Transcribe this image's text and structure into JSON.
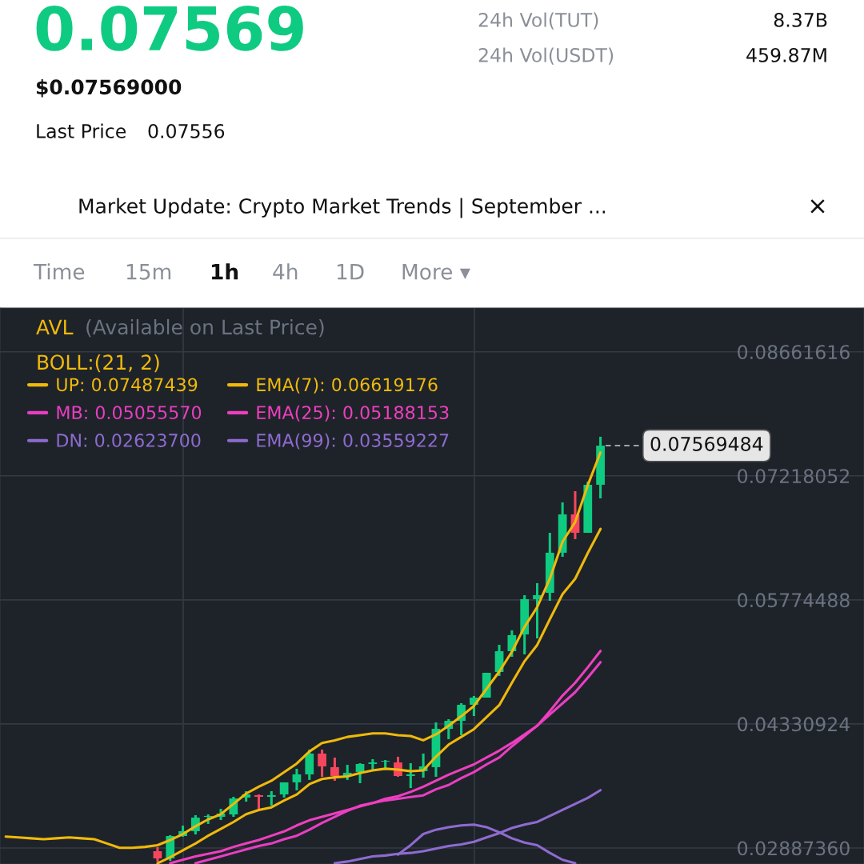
{
  "chart_data": {
    "type": "candlestick",
    "categories": [
      null,
      null,
      null,
      null,
      null,
      null,
      null,
      null,
      null,
      null,
      null,
      null,
      null,
      null,
      null,
      null,
      null,
      null,
      null,
      null,
      null,
      null,
      null,
      null,
      null,
      null,
      null,
      null,
      null,
      null,
      null,
      null,
      null,
      null,
      null,
      null,
      null,
      null,
      null,
      null,
      null,
      null,
      null,
      null,
      null,
      null,
      null,
      null
    ],
    "ohlc": [
      null,
      null,
      null,
      null,
      null,
      null,
      null,
      null,
      null,
      null,
      null,
      null,
      [
        0.0285,
        0.02897,
        0.02729,
        0.02766
      ],
      [
        0.02766,
        0.03036,
        0.02738,
        0.03027
      ],
      [
        0.03027,
        0.03148,
        0.03018,
        0.03083
      ],
      [
        0.03083,
        0.03269,
        0.03045,
        0.03241
      ],
      [
        0.0325,
        0.03278,
        0.03167,
        0.0326
      ],
      [
        0.0325,
        0.03343,
        0.03213,
        0.03288
      ],
      [
        0.03278,
        0.03483,
        0.0325,
        0.03464
      ],
      [
        0.03474,
        0.03548,
        0.03427,
        0.03511
      ],
      [
        0.03502,
        0.03511,
        0.03334,
        0.03483
      ],
      [
        0.03483,
        0.03548,
        0.03381,
        0.03502
      ],
      [
        0.03511,
        0.03651,
        0.03474,
        0.03651
      ],
      [
        0.03651,
        0.03809,
        0.03558,
        0.03744
      ],
      [
        0.03744,
        0.04032,
        0.03679,
        0.03986
      ],
      [
        0.03986,
        0.04032,
        0.03716,
        0.03837
      ],
      [
        0.03828,
        0.03939,
        0.03669,
        0.03725
      ],
      [
        0.03725,
        0.03855,
        0.03679,
        0.03762
      ],
      [
        0.03772,
        0.03874,
        0.03641,
        0.03865
      ],
      [
        0.03865,
        0.03921,
        0.038,
        0.03883
      ],
      [
        0.03893,
        0.03911,
        0.03818,
        0.03902
      ],
      [
        0.03883,
        0.03949,
        0.03716,
        0.03725
      ],
      [
        0.03725,
        0.03874,
        0.03585,
        0.03744
      ],
      [
        0.03781,
        0.03986,
        0.03706,
        0.03837
      ],
      [
        0.03828,
        0.04349,
        0.03716,
        0.04274
      ],
      [
        0.04274,
        0.04386,
        0.04153,
        0.04367
      ],
      [
        0.04367,
        0.04572,
        0.042,
        0.04554
      ],
      [
        0.04554,
        0.04656,
        0.04423,
        0.04637
      ],
      [
        0.04637,
        0.04926,
        0.04637,
        0.04926
      ],
      [
        0.04935,
        0.05252,
        0.04889,
        0.05177
      ],
      [
        0.05177,
        0.0542,
        0.05112,
        0.05364
      ],
      [
        0.05373,
        0.05829,
        0.0514,
        0.05783
      ],
      [
        0.05783,
        0.05969,
        0.05326,
        0.05829
      ],
      [
        0.05857,
        0.06555,
        0.05764,
        0.06323
      ],
      [
        0.06323,
        0.06909,
        0.06276,
        0.06769
      ],
      [
        0.06769,
        0.07039,
        0.06481,
        0.06555
      ],
      [
        0.06555,
        0.07151,
        0.06555,
        0.07114
      ],
      [
        0.07114,
        0.07673,
        0.06956,
        0.07569
      ]
    ],
    "colors": [
      null,
      null,
      null,
      null,
      null,
      null,
      null,
      null,
      null,
      null,
      null,
      null,
      "#f6465d",
      "#0ecb81",
      "#0ecb81",
      "#0ecb81",
      "#0ecb81",
      "#0ecb81",
      "#0ecb81",
      "#0ecb81",
      "#f6465d",
      "#0ecb81",
      "#0ecb81",
      "#0ecb81",
      "#0ecb81",
      "#f6465d",
      "#f6465d",
      "#0ecb81",
      "#0ecb81",
      "#0ecb81",
      "#0ecb81",
      "#f6465d",
      "#0ecb81",
      "#0ecb81",
      "#0ecb81",
      "#0ecb81",
      "#0ecb81",
      "#0ecb81",
      "#0ecb81",
      "#0ecb81",
      "#0ecb81",
      "#0ecb81",
      "#0ecb81",
      "#0ecb81",
      "#0ecb81",
      "#f6465d",
      "#0ecb81",
      "#0ecb81"
    ],
    "series": [
      {
        "type": "line",
        "name": "UP: 0.07487439",
        "color": "#f0b90b",
        "values": [
          0.0302,
          0.0301,
          0.03,
          0.0299,
          0.03,
          0.0301,
          0.03,
          0.0299,
          0.0294,
          0.0289,
          0.0289,
          0.029,
          0.0292,
          0.0298,
          0.0305,
          0.0314,
          0.0322,
          0.0328,
          0.034,
          0.0352,
          0.036,
          0.0367,
          0.0377,
          0.0387,
          0.0401,
          0.0411,
          0.0414,
          0.0418,
          0.042,
          0.0422,
          0.0422,
          0.042,
          0.0419,
          0.0414,
          0.0421,
          0.0431,
          0.0442,
          0.0454,
          0.0474,
          0.0494,
          0.0517,
          0.0546,
          0.0569,
          0.0602,
          0.0645,
          0.0668,
          0.0711,
          0.0749
        ]
      },
      {
        "type": "line",
        "name": "MB: 0.05055570",
        "color": "#e93ec3",
        "values": [
          null,
          null,
          null,
          null,
          null,
          null,
          null,
          null,
          null,
          null,
          null,
          null,
          null,
          null,
          null,
          0.0271,
          0.0275,
          0.0279,
          0.0283,
          0.0287,
          0.0291,
          0.0294,
          0.0299,
          0.0303,
          0.031,
          0.0318,
          0.0325,
          0.0332,
          0.0338,
          0.0341,
          0.0344,
          0.0346,
          0.0348,
          0.035,
          0.0357,
          0.0362,
          0.037,
          0.0377,
          0.0386,
          0.0394,
          0.0407,
          0.0419,
          0.0431,
          0.0444,
          0.0457,
          0.047,
          0.0487,
          0.0505
        ]
      },
      {
        "type": "line",
        "name": "DN: 0.02623700",
        "color": "#8e6bd0",
        "values": [
          null,
          null,
          null,
          null,
          null,
          null,
          null,
          null,
          null,
          null,
          null,
          null,
          null,
          null,
          null,
          null,
          null,
          null,
          null,
          null,
          null,
          null,
          null,
          null,
          null,
          null,
          null,
          null,
          null,
          null,
          null,
          0.0281,
          0.0292,
          0.0305,
          0.031,
          0.0313,
          0.0315,
          0.0316,
          0.0313,
          0.0307,
          0.03,
          0.0295,
          0.0292,
          0.0283,
          0.0275,
          0.0271,
          null,
          null
        ]
      },
      {
        "type": "line",
        "name": "EMA(7): 0.06619176",
        "color": "#f0b90b",
        "values": [
          null,
          null,
          null,
          null,
          null,
          null,
          null,
          null,
          null,
          null,
          null,
          null,
          0.0271,
          0.0278,
          0.0286,
          0.0294,
          0.0303,
          0.0311,
          0.0319,
          0.0328,
          0.0333,
          0.0336,
          0.0344,
          0.0351,
          0.0363,
          0.0369,
          0.0371,
          0.0372,
          0.0376,
          0.0379,
          0.0381,
          0.038,
          0.0378,
          0.0379,
          0.0395,
          0.0409,
          0.0418,
          0.0427,
          0.0441,
          0.0455,
          0.0481,
          0.0506,
          0.0525,
          0.0555,
          0.0584,
          0.0602,
          0.0632,
          0.066
        ]
      },
      {
        "type": "line",
        "name": "EMA(25): 0.05188153",
        "color": "#ee3fbf",
        "values": [
          null,
          null,
          null,
          null,
          null,
          null,
          null,
          null,
          null,
          null,
          null,
          null,
          null,
          0.0271,
          0.0275,
          0.0279,
          0.0282,
          0.0285,
          0.029,
          0.0294,
          0.0298,
          0.0303,
          0.0308,
          0.0315,
          0.0321,
          0.0325,
          0.0329,
          0.0333,
          0.0337,
          0.0341,
          0.0346,
          0.0349,
          0.0354,
          0.036,
          0.0367,
          0.0374,
          0.038,
          0.0386,
          0.0394,
          0.0402,
          0.0411,
          0.0421,
          0.0431,
          0.0448,
          0.0466,
          0.0481,
          0.0499,
          0.0518
        ]
      },
      {
        "type": "line",
        "name": "EMA(99): 0.03559227",
        "color": "#8e6bd0",
        "values": [
          null,
          null,
          null,
          null,
          null,
          null,
          null,
          null,
          null,
          null,
          null,
          null,
          null,
          null,
          null,
          null,
          null,
          null,
          null,
          null,
          null,
          null,
          null,
          null,
          null,
          null,
          0.0271,
          0.0273,
          0.0276,
          0.0279,
          0.028,
          0.0282,
          0.0283,
          0.0285,
          0.0288,
          0.0291,
          0.0293,
          0.0296,
          0.0301,
          0.0306,
          0.0312,
          0.0316,
          0.0319,
          0.0326,
          0.0333,
          0.034,
          0.0347,
          0.0356
        ]
      }
    ],
    "ylim": [
      0.02701,
      0.09171
    ],
    "yticks": [
      {
        "value": 0.08661616,
        "label": "0.08661616"
      },
      {
        "value": 0.07218052,
        "label": "0.07218052"
      },
      {
        "value": 0.05774488,
        "label": "0.05774488"
      },
      {
        "value": 0.04330924,
        "label": "0.04330924"
      },
      {
        "value": 0.0288736,
        "label": "0.02887360"
      }
    ],
    "ref_lines": [
      {
        "axis": "y",
        "value": 0.07569484,
        "label": "0.07569484",
        "line_style": "dashed"
      }
    ],
    "grid": true,
    "legend": "top left",
    "annotations": [
      "0.07569",
      "$0.07569000",
      "Last Price",
      "0.07556",
      "24h Vol(TUT)",
      "8.37B",
      "24h Vol(USDT)",
      "459.87M",
      "Market Update: Crypto Market Trends | September ...",
      "×",
      "Time",
      "15m",
      "1h",
      "4h",
      "1D",
      "More ▾",
      "AVL",
      "(Available on Last Price)",
      "BOLL:(21, 2)"
    ]
  }
}
